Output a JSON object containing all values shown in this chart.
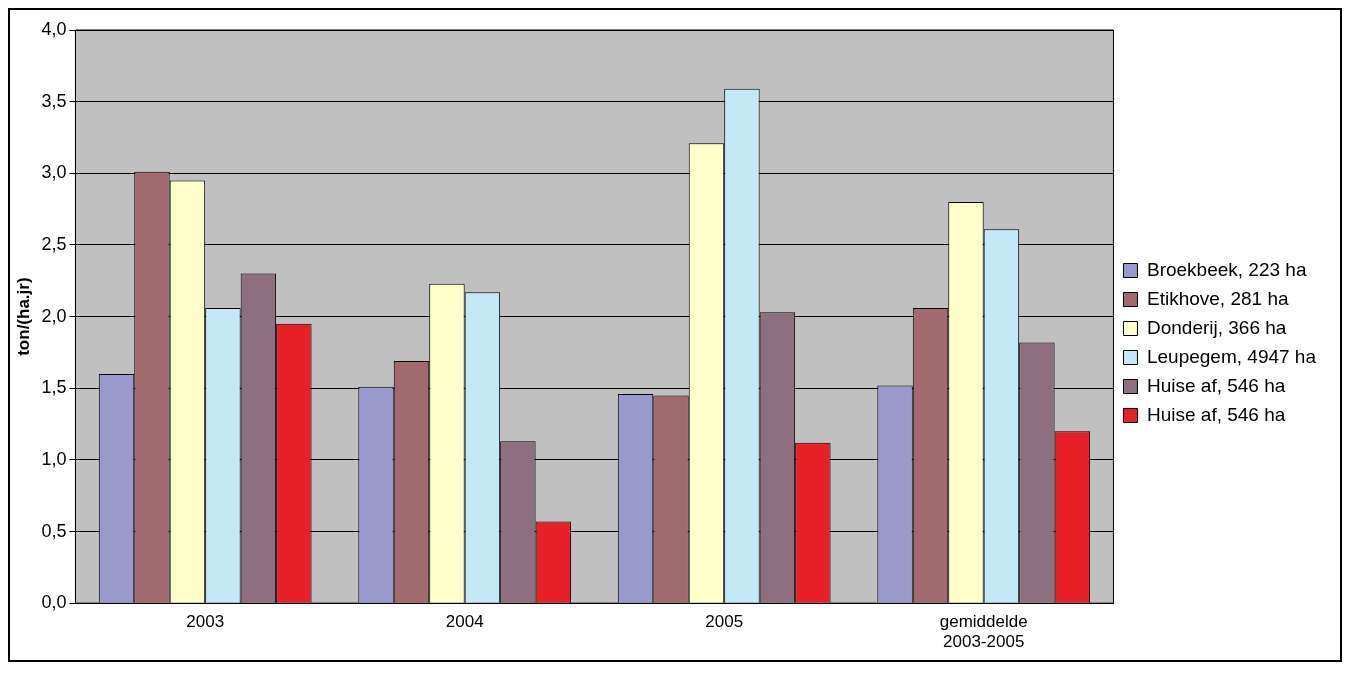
{
  "chart_data": {
    "type": "bar",
    "ylabel": "ton/(ha.jr)",
    "categories": [
      "2003",
      "2004",
      "2005",
      "gemiddelde 2003-2005"
    ],
    "series": [
      {
        "name": "Broekbeek, 223 ha",
        "color": "#9999cc",
        "values": [
          1.6,
          1.51,
          1.46,
          1.52
        ]
      },
      {
        "name": "Etikhove, 281 ha",
        "color": "#a06a6e",
        "values": [
          3.01,
          1.69,
          1.45,
          2.06
        ]
      },
      {
        "name": "Donderij, 366 ha",
        "color": "#ffffcc",
        "values": [
          2.95,
          2.23,
          3.21,
          2.8
        ]
      },
      {
        "name": "Leupegem, 4947 ha",
        "color": "#c4e8f6",
        "values": [
          2.06,
          2.17,
          3.59,
          2.61
        ]
      },
      {
        "name": "Huise af, 546 ha",
        "color": "#8e6f80",
        "values": [
          2.3,
          1.13,
          2.03,
          1.82
        ]
      },
      {
        "name": "Huise af, 546 ha",
        "color": "#e8202a",
        "values": [
          1.95,
          0.57,
          1.12,
          1.2
        ]
      }
    ],
    "ylim": [
      0,
      4
    ],
    "yticks": [
      {
        "value": 0,
        "label": "0,0"
      },
      {
        "value": 0.5,
        "label": "0,5"
      },
      {
        "value": 1,
        "label": "1,0"
      },
      {
        "value": 1.5,
        "label": "1,5"
      },
      {
        "value": 2,
        "label": "2,0"
      },
      {
        "value": 2.5,
        "label": "2,5"
      },
      {
        "value": 3,
        "label": "3,0"
      },
      {
        "value": 3.5,
        "label": "3,5"
      },
      {
        "value": 4,
        "label": "4,0"
      }
    ],
    "grid": "y",
    "legend": "right"
  }
}
